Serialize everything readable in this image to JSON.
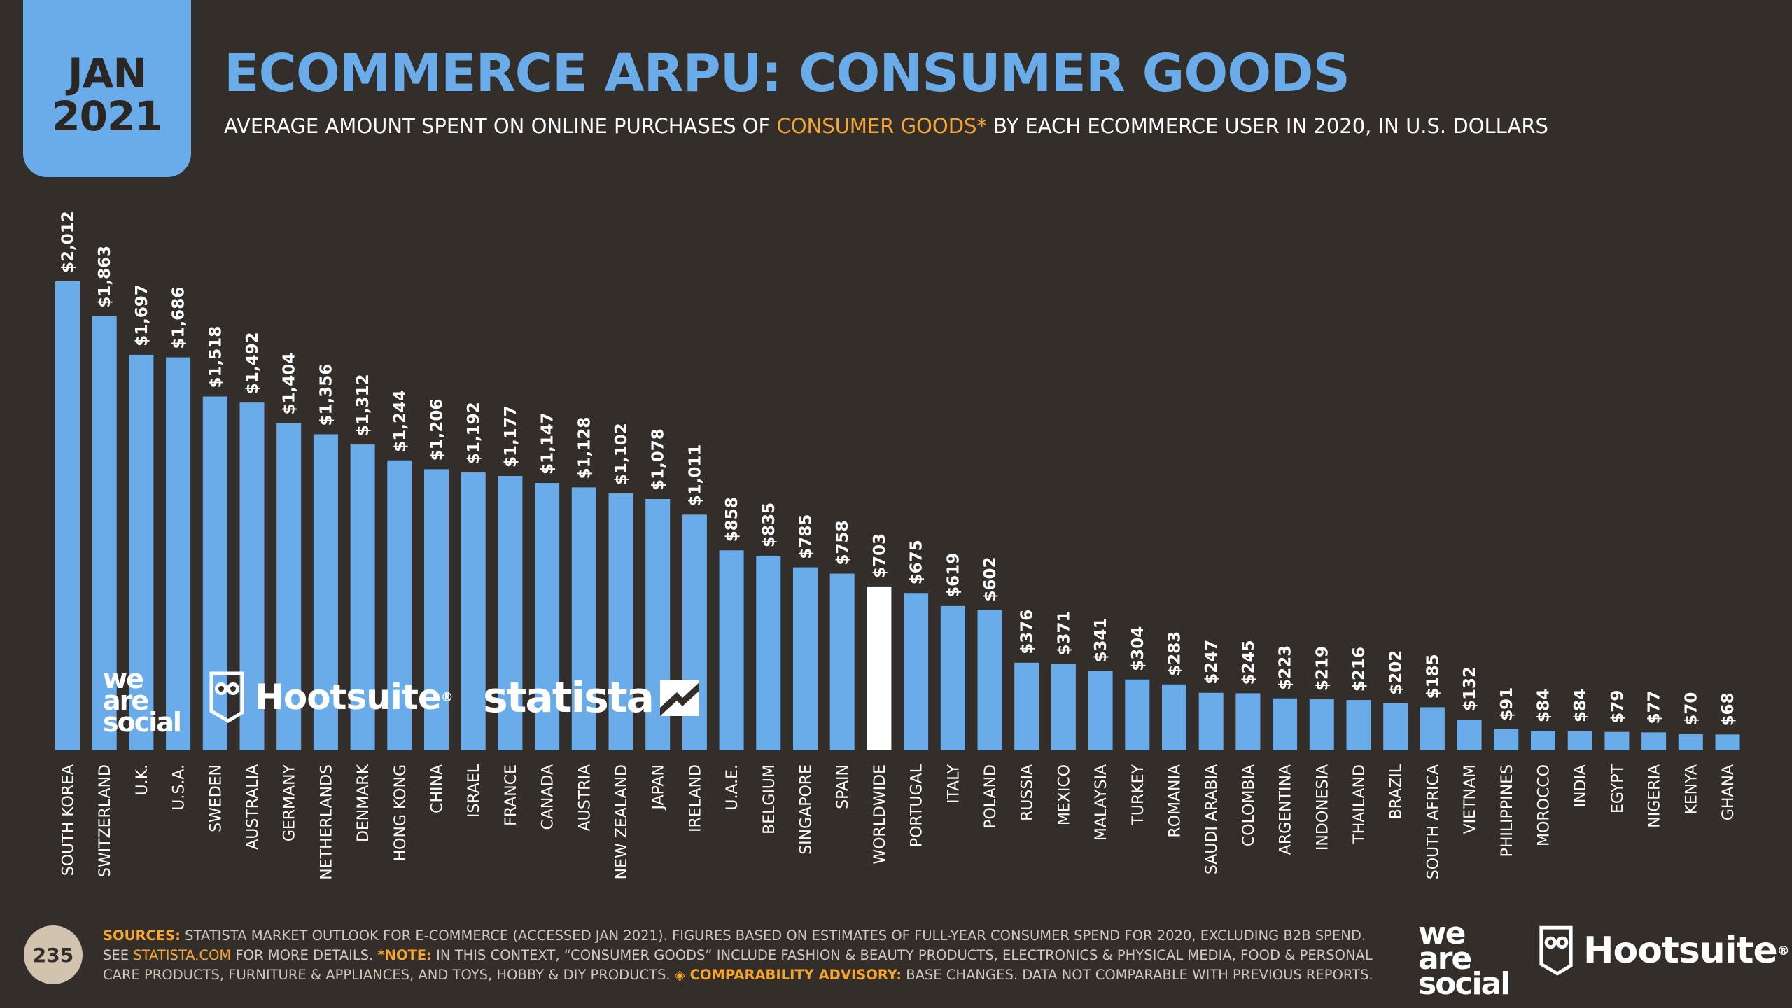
{
  "header": {
    "month": "JAN",
    "year": "2021",
    "title": "ECOMMERCE ARPU: CONSUMER GOODS",
    "subtitle_pre": "AVERAGE AMOUNT SPENT ON ONLINE PURCHASES OF ",
    "subtitle_highlight": "CONSUMER GOODS*",
    "subtitle_post": " BY EACH ECOMMERCE USER IN 2020, IN U.S. DOLLARS"
  },
  "watermarks": {
    "weare_line1": "we",
    "weare_line2": "are",
    "weare_line3": "social",
    "hootsuite": "Hootsuite",
    "statista": "statista"
  },
  "footer": {
    "sources_label": "SOURCES:",
    "sources_text": " STATISTA MARKET OUTLOOK FOR E-COMMERCE (ACCESSED JAN 2021). FIGURES BASED ON ESTIMATES OF FULL-YEAR CONSUMER SPEND FOR 2020, EXCLUDING B2B SPEND. SEE ",
    "link": "STATISTA.COM",
    "more": " FOR MORE DETAILS. ",
    "note_label": "*NOTE:",
    "note_text": " IN THIS CONTEXT, “CONSUMER GOODS” INCLUDE FASHION & BEAUTY PRODUCTS, ELECTRONICS & PHYSICAL MEDIA, FOOD & PERSONAL CARE PRODUCTS, FURNITURE & APPLIANCES, AND TOYS, HOBBY & DIY PRODUCTS. ",
    "advisory_label": "◈ COMPARABILITY ADVISORY:",
    "advisory_text": " BASE CHANGES. DATA NOT COMPARABLE WITH PREVIOUS REPORTS.",
    "page_number": "235"
  },
  "colors": {
    "bar": "#6aace9",
    "highlight_bar": "#ffffff",
    "accent": "#f7a531",
    "background": "#332e2a"
  },
  "chart_data": {
    "type": "bar",
    "title": "ECOMMERCE ARPU: CONSUMER GOODS",
    "xlabel": "",
    "ylabel": "",
    "highlight_category": "WORLDWIDE",
    "categories": [
      "SOUTH KOREA",
      "SWITZERLAND",
      "U.K.",
      "U.S.A.",
      "SWEDEN",
      "AUSTRALIA",
      "GERMANY",
      "NETHERLANDS",
      "DENMARK",
      "HONG KONG",
      "CHINA",
      "ISRAEL",
      "FRANCE",
      "CANADA",
      "AUSTRIA",
      "NEW ZEALAND",
      "JAPAN",
      "IRELAND",
      "U.A.E.",
      "BELGIUM",
      "SINGAPORE",
      "SPAIN",
      "WORLDWIDE",
      "PORTUGAL",
      "ITALY",
      "POLAND",
      "RUSSIA",
      "MEXICO",
      "MALAYSIA",
      "TURKEY",
      "ROMANIA",
      "SAUDI ARABIA",
      "COLOMBIA",
      "ARGENTINA",
      "INDONESIA",
      "THAILAND",
      "BRAZIL",
      "SOUTH AFRICA",
      "VIETNAM",
      "PHILIPPINES",
      "MOROCCO",
      "INDIA",
      "EGYPT",
      "NIGERIA",
      "KENYA",
      "GHANA"
    ],
    "values": [
      2012,
      1863,
      1697,
      1686,
      1518,
      1492,
      1404,
      1356,
      1312,
      1244,
      1206,
      1192,
      1177,
      1147,
      1128,
      1102,
      1078,
      1011,
      858,
      835,
      785,
      758,
      703,
      675,
      619,
      602,
      376,
      371,
      341,
      304,
      283,
      247,
      245,
      223,
      219,
      216,
      202,
      185,
      132,
      91,
      84,
      84,
      79,
      77,
      70,
      68
    ],
    "value_labels": [
      "$2,012",
      "$1,863",
      "$1,697",
      "$1,686",
      "$1,518",
      "$1,492",
      "$1,404",
      "$1,356",
      "$1,312",
      "$1,244",
      "$1,206",
      "$1,192",
      "$1,177",
      "$1,147",
      "$1,128",
      "$1,102",
      "$1,078",
      "$1,011",
      "$858",
      "$835",
      "$785",
      "$758",
      "$703",
      "$675",
      "$619",
      "$602",
      "$376",
      "$371",
      "$341",
      "$304",
      "$283",
      "$247",
      "$245",
      "$223",
      "$219",
      "$216",
      "$202",
      "$185",
      "$132",
      "$91",
      "$84",
      "$84",
      "$79",
      "$77",
      "$70",
      "$68"
    ]
  }
}
